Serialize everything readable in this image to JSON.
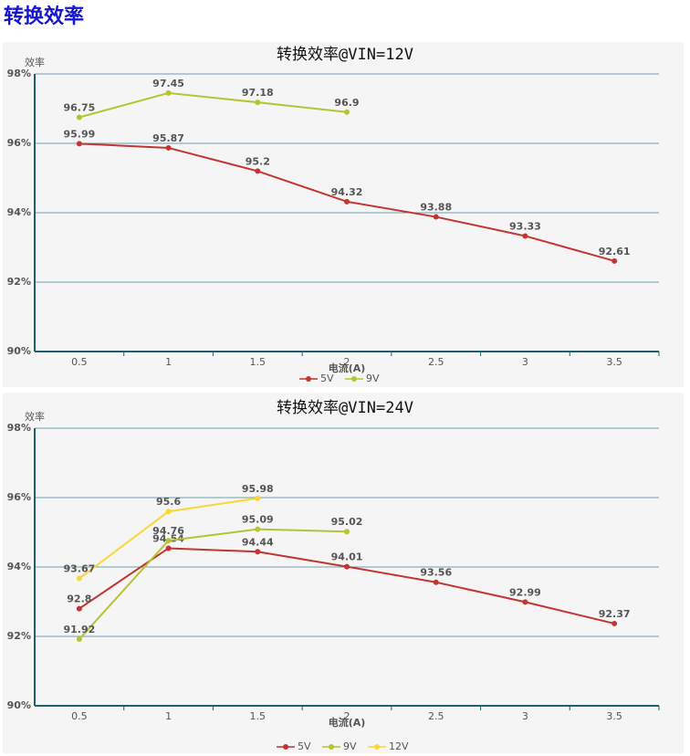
{
  "heading": "转换效率",
  "chart_data": [
    {
      "type": "line",
      "title": "转换效率@VIN=12V",
      "y_label": "效率",
      "x_label": "电流(A)",
      "categories": [
        "0.5",
        "1",
        "1.5",
        "2",
        "2.5",
        "3",
        "3.5"
      ],
      "ylim": [
        90,
        98
      ],
      "yticks": [
        {
          "value": 90,
          "label": "90%"
        },
        {
          "value": 92,
          "label": "92%"
        },
        {
          "value": 94,
          "label": "94%"
        },
        {
          "value": 96,
          "label": "96%"
        },
        {
          "value": 98,
          "label": "98%"
        }
      ],
      "grid": true,
      "legend": "bottom",
      "series": [
        {
          "name": "5V",
          "color": "#c23531",
          "values": [
            95.99,
            95.87,
            95.2,
            94.32,
            93.88,
            93.33,
            92.61
          ]
        },
        {
          "name": "9V",
          "color": "#b5c334",
          "values": [
            96.75,
            97.45,
            97.18,
            96.9,
            null,
            null,
            null
          ]
        }
      ]
    },
    {
      "type": "line",
      "title": "转换效率@VIN=24V",
      "y_label": "效率",
      "x_label": "电流(A)",
      "categories": [
        "0.5",
        "1",
        "1.5",
        "2",
        "2.5",
        "3",
        "3.5"
      ],
      "ylim": [
        90,
        98
      ],
      "yticks": [
        {
          "value": 90,
          "label": "90%"
        },
        {
          "value": 92,
          "label": "92%"
        },
        {
          "value": 94,
          "label": "94%"
        },
        {
          "value": 96,
          "label": "96%"
        },
        {
          "value": 98,
          "label": "98%"
        }
      ],
      "grid": true,
      "legend": "bottom",
      "series": [
        {
          "name": "5V",
          "color": "#c23531",
          "values": [
            92.8,
            94.54,
            94.44,
            94.01,
            93.56,
            92.99,
            92.37
          ]
        },
        {
          "name": "9V",
          "color": "#b5c334",
          "values": [
            91.92,
            94.76,
            95.09,
            95.02,
            null,
            null,
            null
          ]
        },
        {
          "name": "12V",
          "color": "#fad733",
          "values": [
            93.67,
            95.6,
            95.98,
            null,
            null,
            null,
            null
          ]
        }
      ]
    }
  ]
}
